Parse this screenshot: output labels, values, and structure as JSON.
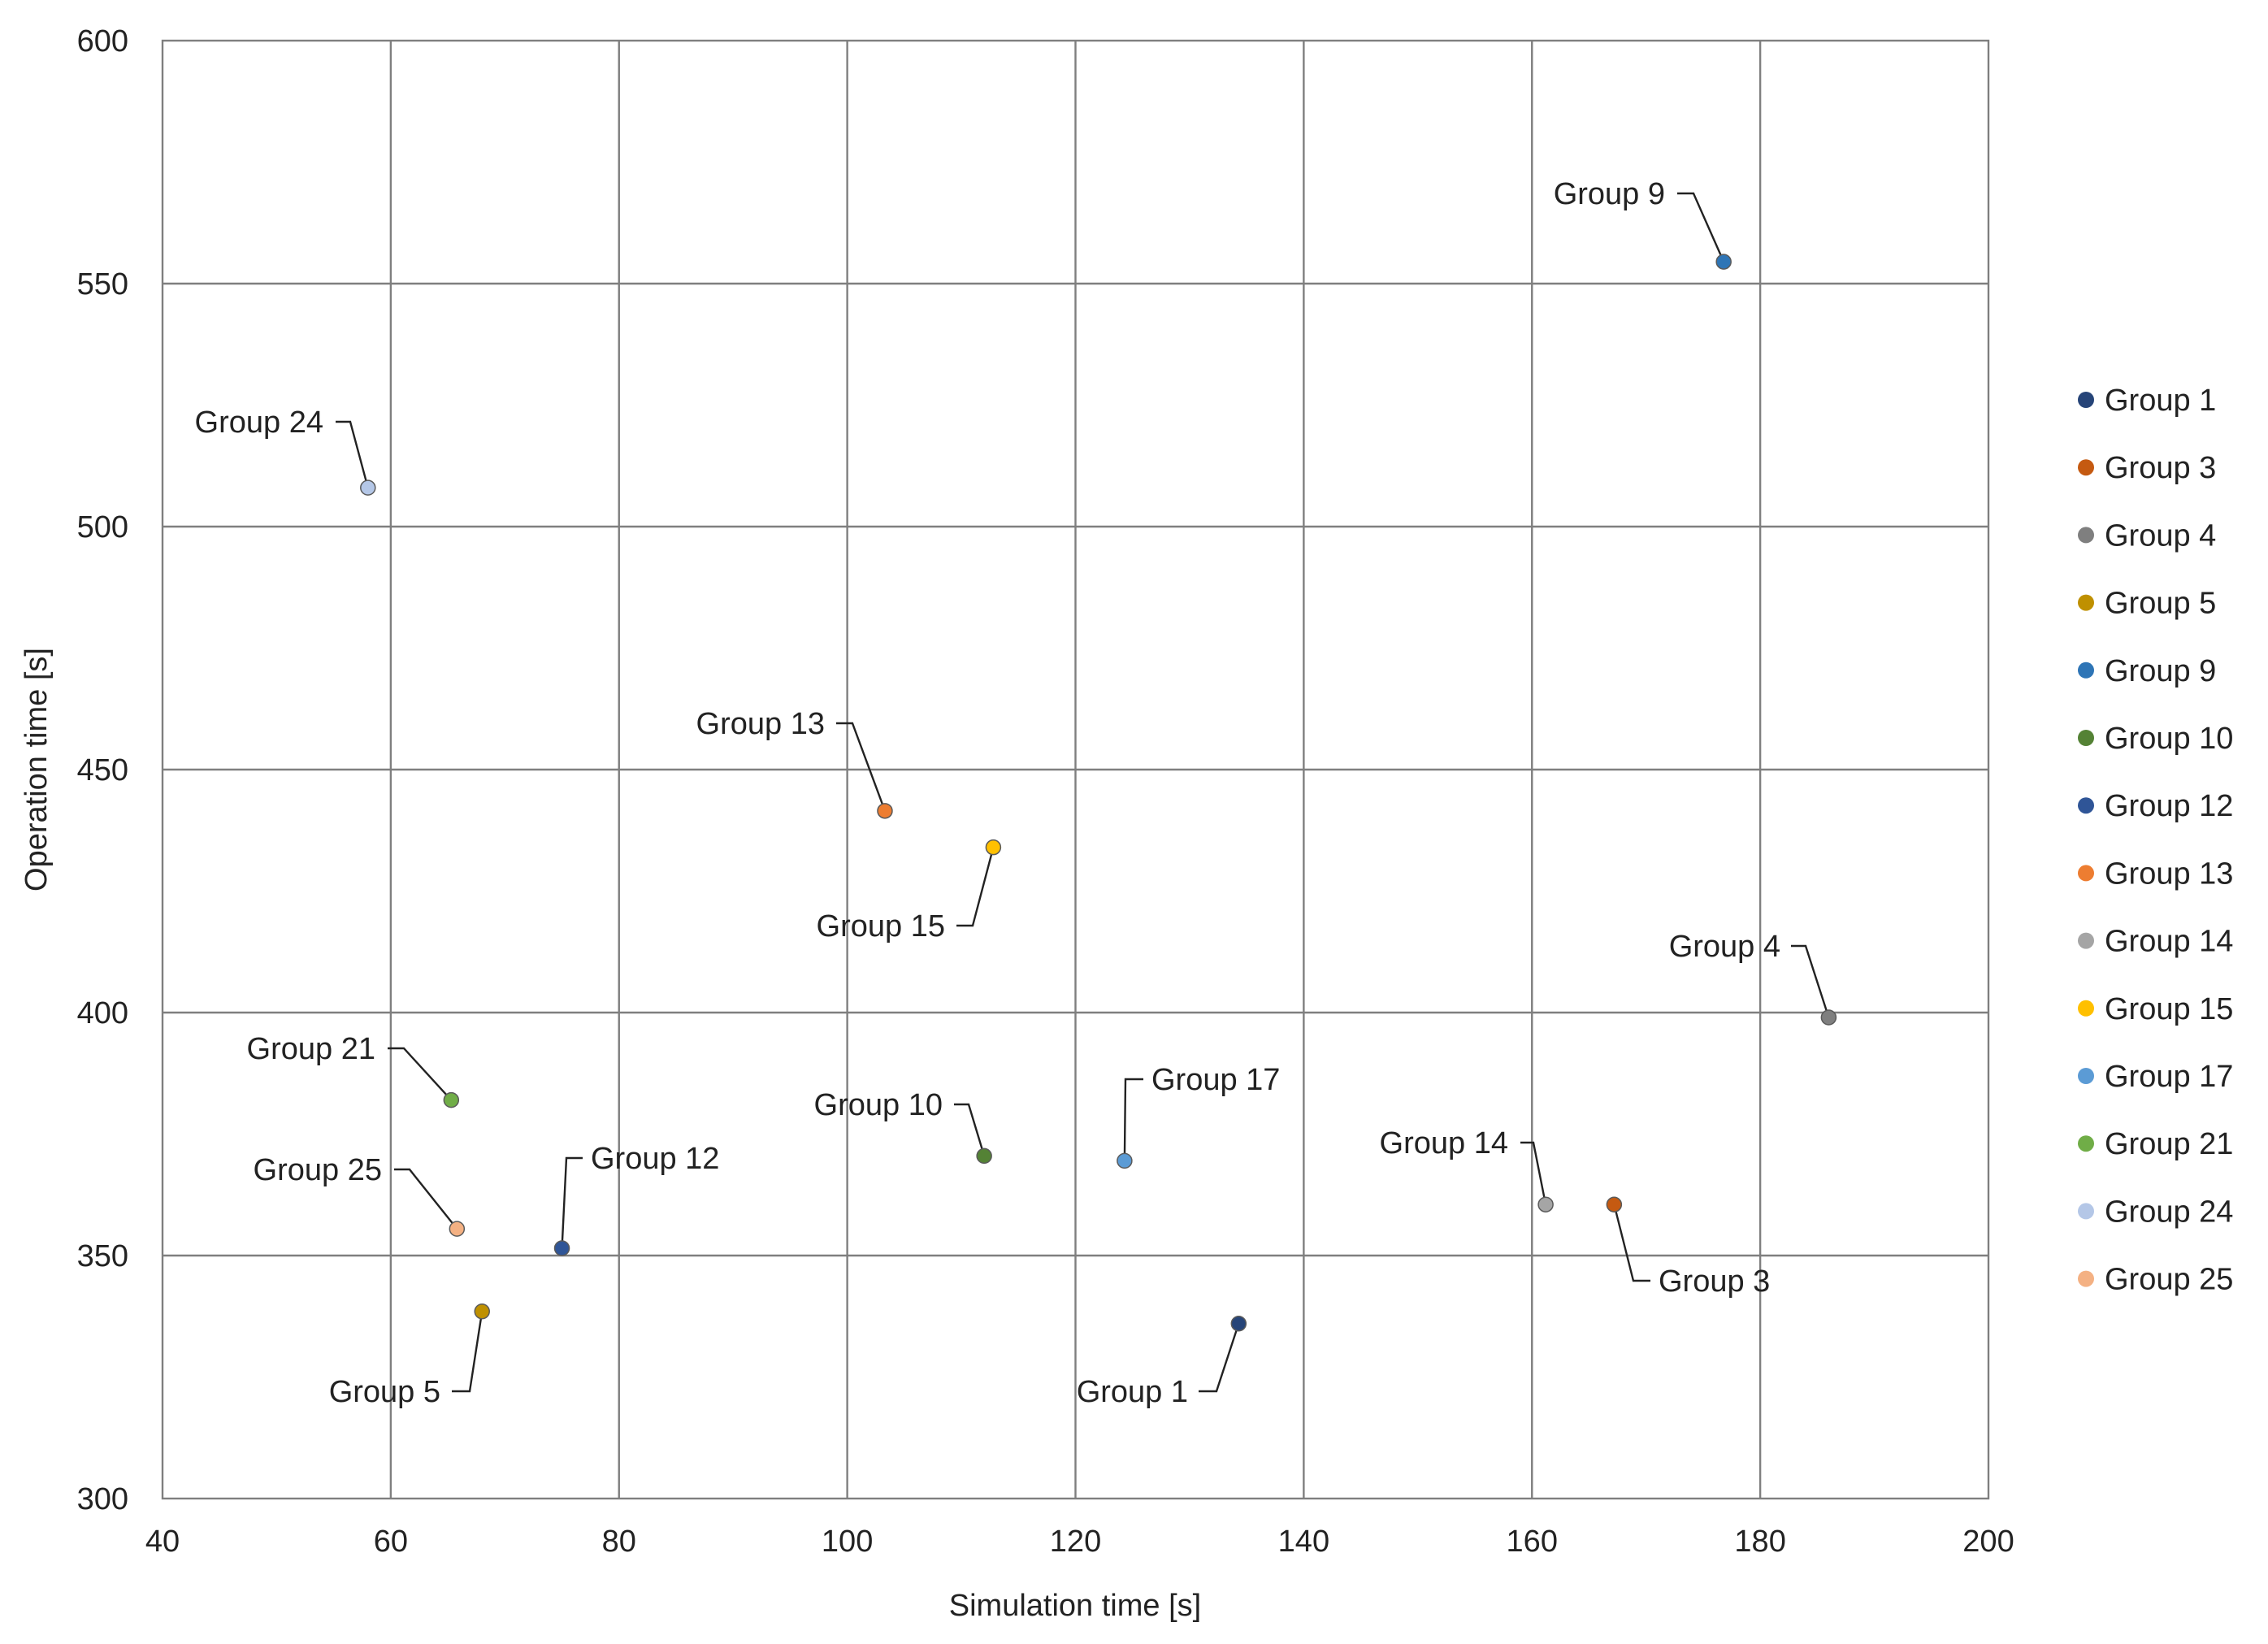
{
  "chart_data": {
    "type": "scatter",
    "title": "",
    "xlabel": "Simulation time [s]",
    "ylabel": "Operation time [s]",
    "xlim": [
      40,
      200
    ],
    "ylim": [
      300,
      600
    ],
    "xticks": [
      40,
      60,
      80,
      100,
      120,
      140,
      160,
      180,
      200
    ],
    "yticks": [
      300,
      350,
      400,
      450,
      500,
      550,
      600
    ],
    "grid": true,
    "legend_position": "right",
    "series": [
      {
        "name": "Group 1",
        "x": 134.3,
        "y": 336,
        "color": "#264478"
      },
      {
        "name": "Group 3",
        "x": 167.2,
        "y": 360.5,
        "color": "#c55a11"
      },
      {
        "name": "Group 4",
        "x": 186.0,
        "y": 399,
        "color": "#7f7f7f"
      },
      {
        "name": "Group 5",
        "x": 68.0,
        "y": 338.5,
        "color": "#bf9000"
      },
      {
        "name": "Group 9",
        "x": 176.8,
        "y": 554.5,
        "color": "#2e75b6"
      },
      {
        "name": "Group 10",
        "x": 112.0,
        "y": 370.5,
        "color": "#548235"
      },
      {
        "name": "Group 12",
        "x": 75.0,
        "y": 351.5,
        "color": "#2f5597"
      },
      {
        "name": "Group 13",
        "x": 103.3,
        "y": 441.5,
        "color": "#ed7d31"
      },
      {
        "name": "Group 14",
        "x": 161.2,
        "y": 360.5,
        "color": "#a5a5a5"
      },
      {
        "name": "Group 15",
        "x": 112.8,
        "y": 434,
        "color": "#ffc000"
      },
      {
        "name": "Group 17",
        "x": 124.3,
        "y": 369.5,
        "color": "#5b9bd5"
      },
      {
        "name": "Group 21",
        "x": 65.3,
        "y": 382,
        "color": "#70ad47"
      },
      {
        "name": "Group 24",
        "x": 58.0,
        "y": 508,
        "color": "#b4c7e7"
      },
      {
        "name": "Group 25",
        "x": 65.8,
        "y": 355.5,
        "color": "#f4b183"
      }
    ]
  }
}
